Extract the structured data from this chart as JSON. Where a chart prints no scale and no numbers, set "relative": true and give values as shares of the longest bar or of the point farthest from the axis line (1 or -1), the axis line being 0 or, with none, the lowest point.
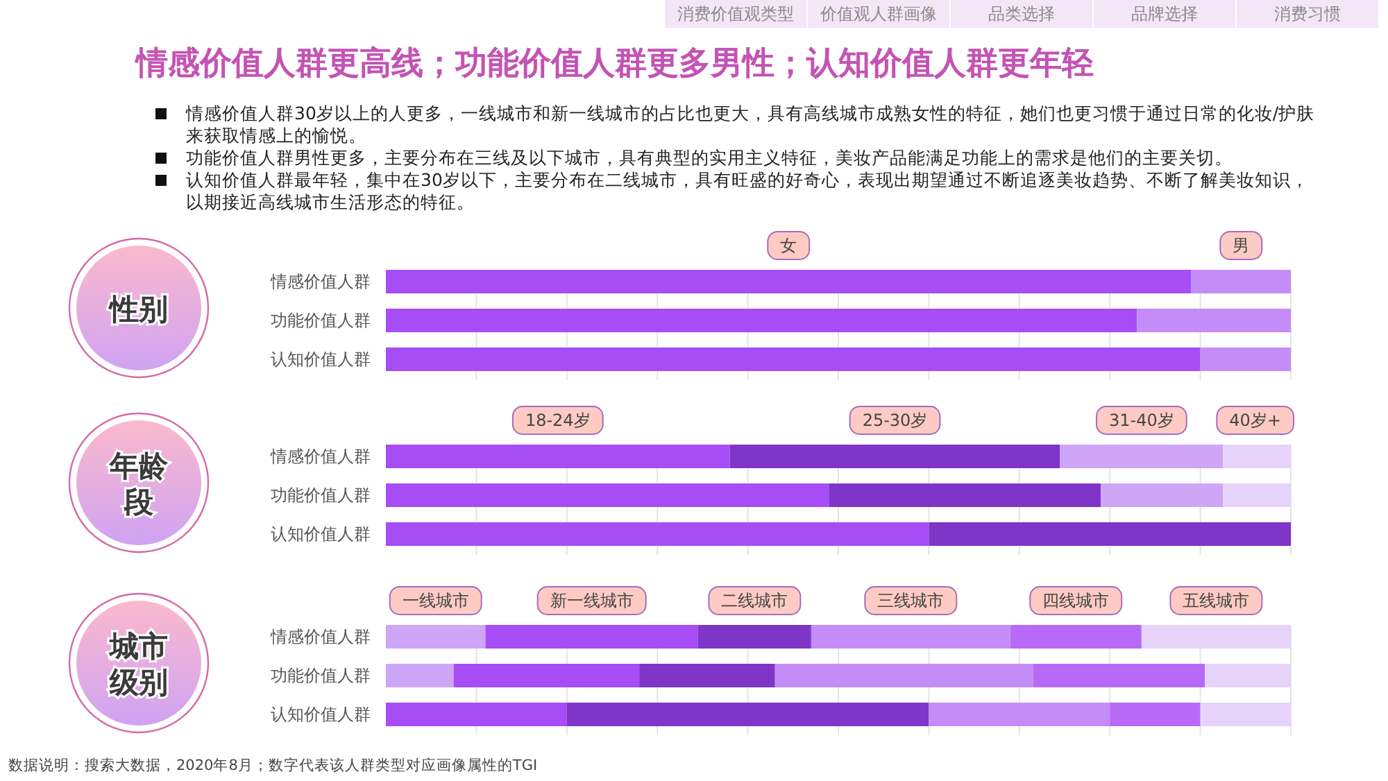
{
  "chart_data": [
    {
      "type": "bar",
      "orientation": "horizontal",
      "stacked": true,
      "relative": true,
      "grid": "x",
      "legend": "top",
      "title": "性别",
      "annotations": [
        "消费价值观类型",
        "价值观人群画像",
        "品类选择",
        "品牌选择",
        "消费习惯",
        "情感价值人群更高线；功能价值人群更多男性；认知价值人群更年轻",
        "情感价值人群30岁以上的人更多，一线城市和新一线城市的占比也更大，具有高线城市成熟女性的特征，她们也更习惯于通过日常的化妆/护肤来获取情感上的愉悦。",
        "功能价值人群男性更多，主要分布在三线及以下城市，具有典型的实用主义特征，美妆产品能满足功能上的需求是他们的主要关切。",
        "认知价值人群最年轻，集中在30岁以下，主要分布在二线城市，具有旺盛的好奇心，表现出期望通过不断追逐美妆趋势、不断了解美妆知识，以期接近高线城市生活形态的特征。"
      ],
      "categories": [
        "情感价值人群",
        "功能价值人群",
        "认知价值人群"
      ],
      "series": [
        {
          "name": "女",
          "color": "#a64df5",
          "values": [
            0.89,
            0.83,
            0.9
          ]
        },
        {
          "name": "男",
          "color": "#c48cf7",
          "values": [
            0.11,
            0.17,
            0.1
          ]
        }
      ]
    },
    {
      "type": "bar",
      "orientation": "horizontal",
      "stacked": true,
      "relative": true,
      "grid": "x",
      "legend": "top",
      "title": "年龄段",
      "categories": [
        "情感价值人群",
        "功能价值人群",
        "认知价值人群"
      ],
      "series": [
        {
          "name": "18-24岁",
          "color": "#a64df5",
          "values": [
            0.38,
            0.49,
            0.6
          ]
        },
        {
          "name": "25-30岁",
          "color": "#7e35c8",
          "values": [
            0.365,
            0.3,
            0.4
          ]
        },
        {
          "name": "31-40岁",
          "color": "#cfa5f7",
          "values": [
            0.18,
            0.135,
            0
          ]
        },
        {
          "name": "40岁+",
          "color": "#e6d3fa",
          "values": [
            0.075,
            0.075,
            0
          ]
        }
      ]
    },
    {
      "type": "bar",
      "orientation": "horizontal",
      "stacked": true,
      "relative": true,
      "grid": "x",
      "legend": "top",
      "title": "城市级别",
      "annotations": [
        "数据说明：搜索大数据，2020年8月；数字代表该人群类型对应画像属性的TGI"
      ],
      "categories": [
        "情感价值人群",
        "功能价值人群",
        "认知价值人群"
      ],
      "series": [
        {
          "name": "一线城市",
          "color": "#cfa5f7",
          "values": [
            0.11,
            0.075,
            0
          ]
        },
        {
          "name": "新一线城市",
          "color": "#a64df5",
          "values": [
            0.235,
            0.205,
            0.2
          ]
        },
        {
          "name": "二线城市",
          "color": "#7e35c8",
          "values": [
            0.125,
            0.15,
            0.4
          ]
        },
        {
          "name": "三线城市",
          "color": "#c48cf7",
          "values": [
            0.22,
            0.285,
            0.2
          ]
        },
        {
          "name": "四线城市",
          "color": "#b76af7",
          "values": [
            0.145,
            0.19,
            0.1
          ]
        },
        {
          "name": "五线城市",
          "color": "#e6d3fa",
          "values": [
            0.165,
            0.095,
            0.1
          ]
        }
      ]
    }
  ]
}
